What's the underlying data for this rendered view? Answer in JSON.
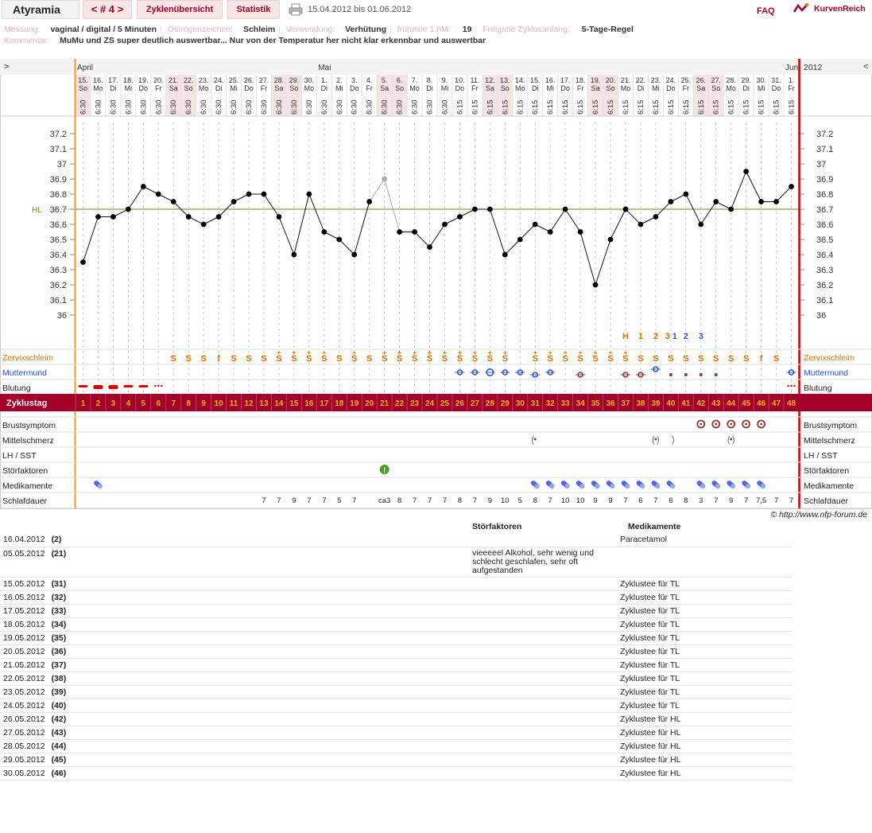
{
  "header": {
    "app_title": "Atyramia",
    "cycle_nav": "< # 4 >",
    "tab_overview": "Zyklenübersicht",
    "tab_stats": "Statistik",
    "date_range": "15.04.2012 bis 01.06.2012",
    "faq": "FAQ",
    "logo": "KurvenReich"
  },
  "info": {
    "measure_label": "Messung:",
    "measure_value": "vaginal / digital / 5 Minuten",
    "estrogen_label": "Östrogenzeichen:",
    "estrogen_value": "Schleim",
    "use_label": "Verwendung:",
    "use_value": "Verhütung",
    "earliest_label": "früheste 1.hM:",
    "earliest_value": "19",
    "release_label": "Freigabe Zyklusanfang:",
    "release_value": "5-Tage-Regel",
    "comment_label": "Kommentar:",
    "comment_value": "MuMu und ZS super deutlich auswertbar... Nur von der Temperatur her nicht klar erkennbar und auswertbar"
  },
  "colors": {
    "brand": "#a3002a",
    "orange": "#e07000",
    "blue": "#3355cc",
    "hl": "#6b8a1a",
    "grid": "#cccccc",
    "weekend": "#f6e4e4"
  },
  "chart_data": {
    "type": "line",
    "months": [
      {
        "label": "April",
        "day": 1
      },
      {
        "label": "Mai",
        "day": 17
      },
      {
        "label": "Juni",
        "day": 48
      }
    ],
    "year": "2012",
    "nav_left": ">",
    "nav_right": "<",
    "dates": [
      "15.",
      "16.",
      "17.",
      "18.",
      "19.",
      "20.",
      "21.",
      "22.",
      "23.",
      "24.",
      "25.",
      "26.",
      "27.",
      "28.",
      "29.",
      "30.",
      "1.",
      "2.",
      "3.",
      "4.",
      "5.",
      "6.",
      "7.",
      "8.",
      "9.",
      "10.",
      "11.",
      "12.",
      "13.",
      "14.",
      "15.",
      "16.",
      "17.",
      "18.",
      "19.",
      "20.",
      "21.",
      "22.",
      "23.",
      "24.",
      "25.",
      "26.",
      "27.",
      "28.",
      "29.",
      "30.",
      "31.",
      "1."
    ],
    "weekdays": [
      "So",
      "Mo",
      "Di",
      "Mi",
      "Do",
      "Fr",
      "Sa",
      "So",
      "Mo",
      "Di",
      "Mi",
      "Do",
      "Fr",
      "Sa",
      "So",
      "Mo",
      "Di",
      "Mi",
      "Do",
      "Fr",
      "Sa",
      "So",
      "Mo",
      "Di",
      "Mi",
      "Do",
      "Fr",
      "Sa",
      "So",
      "Mo",
      "Di",
      "Mi",
      "Do",
      "Fr",
      "Sa",
      "So",
      "Mo",
      "Di",
      "Mi",
      "Do",
      "Fr",
      "Sa",
      "So",
      "Mo",
      "Di",
      "Mi",
      "Do",
      "Fr"
    ],
    "times": [
      "6:30",
      "6:30",
      "6:30",
      "6:30",
      "6:30",
      "6:30",
      "6:30",
      "6:30",
      "6:30",
      "6:30",
      "6:30",
      "6:30",
      "6:30",
      "6:30",
      "6:30",
      "6:30",
      "6:30",
      "6:30",
      "6:30",
      "6:30",
      "6:30",
      "6:30",
      "6:30",
      "6:30",
      "6:30",
      "6:15",
      "6:15",
      "6:15",
      "6:15",
      "6:15",
      "6:15",
      "6:15",
      "6:15",
      "6:15",
      "6:15",
      "6:15",
      "6:15",
      "6:15",
      "6:15",
      "6:15",
      "6:15",
      "6:15",
      "6:15",
      "6:15",
      "6:15",
      "6:15",
      "6:15",
      "6:15"
    ],
    "weekend_days": [
      1,
      7,
      8,
      14,
      15,
      21,
      22,
      28,
      29,
      35,
      36,
      42,
      43
    ],
    "temperatures": [
      36.35,
      36.65,
      36.65,
      36.7,
      36.85,
      36.8,
      36.75,
      36.65,
      36.6,
      36.65,
      36.75,
      36.8,
      36.8,
      36.65,
      36.4,
      36.8,
      36.55,
      36.5,
      36.4,
      36.75,
      36.9,
      36.55,
      36.55,
      36.45,
      36.6,
      36.65,
      36.7,
      36.7,
      36.4,
      36.5,
      36.6,
      36.55,
      36.7,
      36.55,
      36.2,
      36.5,
      36.7,
      36.6,
      36.65,
      36.75,
      36.8,
      36.6,
      36.75,
      36.7,
      36.95,
      36.75,
      36.75,
      36.85
    ],
    "excluded_days": [
      21
    ],
    "y_ticks": [
      "37.2",
      "37.1",
      "37",
      "36.9",
      "36.8",
      "36.7",
      "36.6",
      "36.5",
      "36.4",
      "36.3",
      "36.2",
      "36.1",
      "36"
    ],
    "ylim": [
      35.9,
      37.3
    ],
    "hl_label": "HL",
    "hl_value": 36.7,
    "evaluation_marks": [
      {
        "day": 37,
        "text": "H",
        "color": "orange"
      },
      {
        "day": 38,
        "text": "1",
        "color": "orange"
      },
      {
        "day": 39,
        "text": "2",
        "color": "orange"
      },
      {
        "day": 40,
        "text": "3",
        "color": "orange"
      },
      {
        "day": 40,
        "text": "1",
        "color": "blue"
      },
      {
        "day": 41,
        "text": "2",
        "color": "blue"
      },
      {
        "day": 42,
        "text": "3",
        "color": "blue"
      }
    ],
    "rows": {
      "zervix": {
        "label": "Zervixschleim",
        "values": [
          "",
          "",
          "",
          "",
          "",
          "",
          "S",
          "S",
          "S",
          "f",
          "S",
          "S",
          "S",
          "S+",
          "S+",
          "S+",
          "S+",
          "S",
          "S+",
          "S",
          "S+",
          "S+",
          "S+",
          "S+",
          "S+",
          "S+",
          "S+",
          "S+",
          "S+",
          "",
          "S+",
          "S+",
          "S+",
          "S+",
          "S+",
          "S+",
          "S+",
          "S",
          "S",
          "S",
          "S",
          "S",
          "S",
          "S",
          "S",
          "f",
          "S",
          ""
        ]
      },
      "muttermund": {
        "label": "Muttermund",
        "marks": [
          {
            "day": 26,
            "icon": "mm-closed-open-icon"
          },
          {
            "day": 27,
            "icon": "mm-closed-open-icon"
          },
          {
            "day": 28,
            "icon": "mm-open-icon"
          },
          {
            "day": 29,
            "icon": "mm-closed-open-icon"
          },
          {
            "day": 30,
            "icon": "mm-closed-open-icon"
          },
          {
            "day": 31,
            "icon": "mm-low-icon"
          },
          {
            "day": 32,
            "icon": "mm-closed-open-icon"
          },
          {
            "day": 34,
            "icon": "mm-low-brown-icon"
          },
          {
            "day": 37,
            "icon": "mm-low-brown-icon"
          },
          {
            "day": 38,
            "icon": "mm-low-brown-icon"
          },
          {
            "day": 39,
            "icon": "mm-high-icon"
          },
          {
            "day": 40,
            "icon": "mm-dot-icon"
          },
          {
            "day": 41,
            "icon": "mm-dot-icon"
          },
          {
            "day": 42,
            "icon": "mm-dot-icon"
          },
          {
            "day": 43,
            "icon": "mm-dot-icon"
          },
          {
            "day": 48,
            "icon": "mm-closed-open-icon"
          }
        ]
      },
      "blutung": {
        "label": "Blutung",
        "marks": [
          {
            "day": 1,
            "icon": "bleeding-medium-icon"
          },
          {
            "day": 2,
            "icon": "bleeding-heavy-icon"
          },
          {
            "day": 3,
            "icon": "bleeding-heavy-icon"
          },
          {
            "day": 4,
            "icon": "bleeding-medium-icon"
          },
          {
            "day": 5,
            "icon": "bleeding-medium-icon"
          },
          {
            "day": 6,
            "icon": "spotting-icon"
          },
          {
            "day": 48,
            "icon": "spotting-icon"
          }
        ]
      },
      "zyklustag": {
        "label": "Zyklustag"
      },
      "brustsymptom": {
        "label": "Brustsymptom",
        "days": [
          42,
          43,
          44,
          45,
          46
        ]
      },
      "mittelschmerz": {
        "label": "Mittelschmerz",
        "marks": [
          {
            "day": 31,
            "icon": "pain-left-icon"
          },
          {
            "day": 39,
            "icon": "pain-both-icon"
          },
          {
            "day": 40,
            "icon": "pain-right-icon"
          },
          {
            "day": 44,
            "icon": "pain-both-icon"
          }
        ]
      },
      "lh": {
        "label": "LH / SST"
      },
      "stoer": {
        "label": "Störfaktoren",
        "days": [
          21
        ]
      },
      "medi": {
        "label": "Medikamente",
        "days": [
          2,
          31,
          32,
          33,
          34,
          35,
          36,
          37,
          38,
          39,
          40,
          42,
          43,
          44,
          45,
          46
        ]
      },
      "schlaf": {
        "label": "Schlafdauer",
        "values": [
          "",
          "",
          "",
          "",
          "",
          "",
          "",
          "",
          "",
          "",
          "",
          "",
          "7",
          "7",
          "9",
          "7",
          "7",
          "5",
          "7",
          "",
          "ca3",
          "8",
          "7",
          "7",
          "7",
          "8",
          "7",
          "9",
          "10",
          "5",
          "8",
          "7",
          "10",
          "10",
          "9",
          "9",
          "7",
          "6",
          "7",
          "6",
          "8",
          "3",
          "7",
          "9",
          "7",
          "7,5",
          "7",
          "7"
        ]
      }
    }
  },
  "copyright": "© http://www.nfp-forum.de",
  "notes": {
    "col_stoer": "Störfaktoren",
    "col_medi": "Medikamente",
    "rows": [
      {
        "date": "16.04.2012",
        "day": "(2)",
        "stoer": "",
        "medi": "Paracetamol"
      },
      {
        "date": "05.05.2012",
        "day": "(21)",
        "stoer": "vieeeeel Alkohol, sehr wenig und schlecht geschlafen, sehr oft aufgestanden",
        "medi": ""
      },
      {
        "date": "15.05.2012",
        "day": "(31)",
        "stoer": "",
        "medi": "Zyklustee für TL"
      },
      {
        "date": "16.05.2012",
        "day": "(32)",
        "stoer": "",
        "medi": "Zyklustee für TL"
      },
      {
        "date": "17.05.2012",
        "day": "(33)",
        "stoer": "",
        "medi": "Zyklustee für TL"
      },
      {
        "date": "18.05.2012",
        "day": "(34)",
        "stoer": "",
        "medi": "Zyklustee für TL"
      },
      {
        "date": "19.05.2012",
        "day": "(35)",
        "stoer": "",
        "medi": "Zyklustee für TL"
      },
      {
        "date": "20.05.2012",
        "day": "(36)",
        "stoer": "",
        "medi": "Zyklustee für TL"
      },
      {
        "date": "21.05.2012",
        "day": "(37)",
        "stoer": "",
        "medi": "Zyklustee für TL"
      },
      {
        "date": "22.05.2012",
        "day": "(38)",
        "stoer": "",
        "medi": "Zyklustee für TL"
      },
      {
        "date": "23.05.2012",
        "day": "(39)",
        "stoer": "",
        "medi": "Zyklustee für TL"
      },
      {
        "date": "24.05.2012",
        "day": "(40)",
        "stoer": "",
        "medi": "Zyklustee für TL"
      },
      {
        "date": "26.05.2012",
        "day": "(42)",
        "stoer": "",
        "medi": "Zyklustee für HL"
      },
      {
        "date": "27.05.2012",
        "day": "(43)",
        "stoer": "",
        "medi": "Zyklustee für HL"
      },
      {
        "date": "28.05.2012",
        "day": "(44)",
        "stoer": "",
        "medi": "Zyklustee für HL"
      },
      {
        "date": "29.05.2012",
        "day": "(45)",
        "stoer": "",
        "medi": "Zyklustee für HL"
      },
      {
        "date": "30.05.2012",
        "day": "(46)",
        "stoer": "",
        "medi": "Zyklustee für HL"
      }
    ]
  }
}
